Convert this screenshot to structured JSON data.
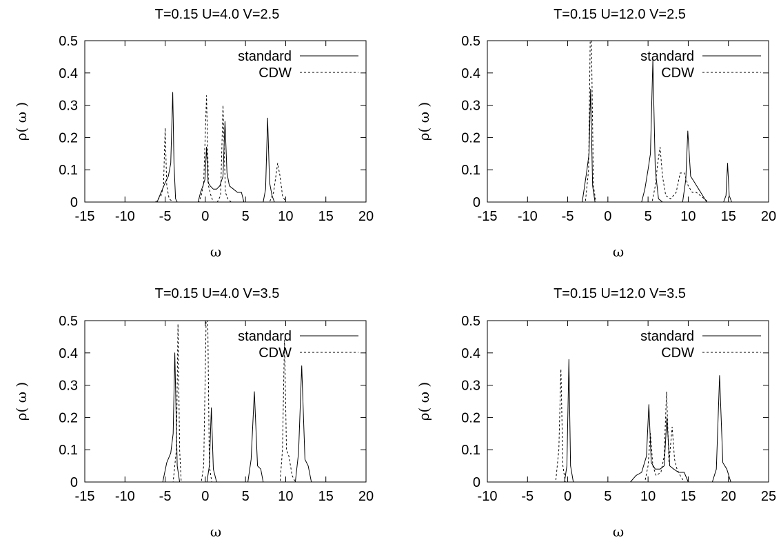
{
  "chart_data": [
    {
      "type": "line",
      "title": "T=0.15 U=4.0 V=2.5",
      "xlabel": "ω",
      "ylabel": "ρ( ω )",
      "xlim": [
        -15,
        20
      ],
      "ylim": [
        0,
        0.5
      ],
      "xticks": [
        "-15",
        "-10",
        "-5",
        "0",
        "5",
        "10",
        "15",
        "20"
      ],
      "yticks": [
        "0",
        "0.1",
        "0.2",
        "0.3",
        "0.4",
        "0.5"
      ],
      "grid": false,
      "legend_position": "top-right",
      "series": [
        {
          "name": "standard",
          "style": "solid",
          "x": [
            -15,
            -6.0,
            -5.5,
            -5.0,
            -4.6,
            -4.3,
            -4.05,
            -3.9,
            -3.7,
            -3.5,
            -0.9,
            -0.6,
            -0.3,
            -0.05,
            0.15,
            0.35,
            0.6,
            1.0,
            1.4,
            1.8,
            2.2,
            2.45,
            2.7,
            3.0,
            3.5,
            4.0,
            4.5,
            4.8,
            7.2,
            7.5,
            7.75,
            8.0,
            8.3,
            8.6,
            20
          ],
          "y": [
            0,
            0,
            0.03,
            0.06,
            0.08,
            0.12,
            0.34,
            0.12,
            0.01,
            0,
            0,
            0.03,
            0.05,
            0.07,
            0.17,
            0.06,
            0.05,
            0.04,
            0.04,
            0.05,
            0.08,
            0.25,
            0.09,
            0.05,
            0.04,
            0.03,
            0.03,
            0,
            0,
            0.04,
            0.26,
            0.06,
            0.02,
            0,
            0
          ]
        },
        {
          "name": "CDW",
          "style": "dashed",
          "x": [
            -15,
            -6.2,
            -5.5,
            -5.2,
            -5.0,
            -4.8,
            -4.5,
            -4.0,
            -0.8,
            -0.5,
            -0.2,
            0.15,
            0.4,
            0.7,
            1.0,
            1.5,
            1.9,
            2.2,
            2.5,
            2.8,
            3.2,
            8.0,
            8.5,
            9.0,
            9.3,
            9.6,
            10.0,
            20
          ],
          "y": [
            0,
            0,
            0.02,
            0.05,
            0.23,
            0.05,
            0.01,
            0,
            0,
            0.02,
            0.06,
            0.33,
            0.05,
            0.02,
            0,
            0,
            0.02,
            0.3,
            0.03,
            0.01,
            0,
            0,
            0.03,
            0.12,
            0.08,
            0.02,
            0,
            0
          ]
        }
      ]
    },
    {
      "type": "line",
      "title": "T=0.15 U=12.0 V=2.5",
      "xlabel": "ω",
      "ylabel": "ρ( ω )",
      "xlim": [
        -15,
        20
      ],
      "ylim": [
        0,
        0.5
      ],
      "xticks": [
        "-15",
        "-10",
        "-5",
        "0",
        "5",
        "10",
        "15",
        "20"
      ],
      "yticks": [
        "0",
        "0.1",
        "0.2",
        "0.3",
        "0.4",
        "0.5"
      ],
      "grid": false,
      "legend_position": "top-right",
      "series": [
        {
          "name": "standard",
          "style": "solid",
          "x": [
            -15,
            -3.2,
            -2.9,
            -2.6,
            -2.35,
            -2.15,
            -1.9,
            -1.6,
            4.2,
            4.6,
            5.0,
            5.3,
            5.6,
            5.9,
            6.3,
            6.8,
            9.3,
            9.7,
            9.95,
            10.3,
            10.8,
            11.3,
            11.8,
            12.3,
            14.4,
            14.7,
            14.9,
            15.1,
            15.4,
            20
          ],
          "y": [
            0,
            0,
            0.05,
            0.1,
            0.15,
            0.35,
            0.05,
            0,
            0,
            0.04,
            0.1,
            0.15,
            0.44,
            0.1,
            0.01,
            0,
            0,
            0.07,
            0.22,
            0.08,
            0.06,
            0.04,
            0.02,
            0,
            0,
            0.02,
            0.12,
            0.02,
            0,
            0
          ]
        },
        {
          "name": "CDW",
          "style": "dashed",
          "x": [
            -15,
            -2.8,
            -2.4,
            -2.2,
            -2.05,
            -1.8,
            -1.5,
            5.5,
            5.9,
            6.2,
            6.5,
            6.8,
            7.2,
            7.8,
            8.5,
            9.0,
            9.5,
            10.0,
            10.5,
            11.0,
            11.5,
            12.0,
            12.5,
            20
          ],
          "y": [
            0,
            0,
            0.1,
            0.5,
            0.5,
            0.05,
            0,
            0,
            0.05,
            0.12,
            0.17,
            0.08,
            0.02,
            0.01,
            0.03,
            0.09,
            0.09,
            0.05,
            0.03,
            0.03,
            0.02,
            0.01,
            0,
            0
          ]
        }
      ]
    },
    {
      "type": "line",
      "title": "T=0.15 U=4.0 V=3.5",
      "xlabel": "ω",
      "ylabel": "ρ( ω )",
      "xlim": [
        -15,
        20
      ],
      "ylim": [
        0,
        0.5
      ],
      "xticks": [
        "-15",
        "-10",
        "-5",
        "0",
        "5",
        "10",
        "15",
        "20"
      ],
      "yticks": [
        "0",
        "0.1",
        "0.2",
        "0.3",
        "0.4",
        "0.5"
      ],
      "grid": false,
      "legend_position": "top-right",
      "series": [
        {
          "name": "standard",
          "style": "solid",
          "x": [
            -15,
            -5.3,
            -4.8,
            -4.3,
            -4.0,
            -3.8,
            -3.5,
            -3.2,
            0.2,
            0.5,
            0.75,
            1.0,
            1.4,
            5.3,
            5.7,
            6.1,
            6.5,
            6.9,
            7.2,
            11.2,
            11.6,
            12.0,
            12.4,
            12.8,
            13.2,
            20
          ],
          "y": [
            0,
            0,
            0.06,
            0.09,
            0.15,
            0.4,
            0.05,
            0,
            0,
            0.05,
            0.23,
            0.04,
            0,
            0,
            0.07,
            0.28,
            0.05,
            0.04,
            0,
            0,
            0.09,
            0.36,
            0.07,
            0.05,
            0,
            0
          ]
        },
        {
          "name": "CDW",
          "style": "dashed",
          "x": [
            -15,
            -4.0,
            -3.6,
            -3.4,
            -3.2,
            -3.0,
            -0.5,
            -0.2,
            0.1,
            0.3,
            0.5,
            0.8,
            9.3,
            9.6,
            9.85,
            10.1,
            10.4,
            10.8,
            11.2,
            20
          ],
          "y": [
            0,
            0,
            0.1,
            0.49,
            0.1,
            0,
            0,
            0.05,
            0.5,
            0.5,
            0.05,
            0,
            0,
            0.1,
            0.44,
            0.1,
            0.08,
            0.02,
            0,
            0
          ]
        }
      ]
    },
    {
      "type": "line",
      "title": "T=0.15 U=12.0 V=3.5",
      "xlabel": "ω",
      "ylabel": "ρ( ω )",
      "xlim": [
        -10,
        25
      ],
      "ylim": [
        0,
        0.5
      ],
      "xticks": [
        "-10",
        "-5",
        "0",
        "5",
        "10",
        "15",
        "20",
        "25"
      ],
      "yticks": [
        "0",
        "0.1",
        "0.2",
        "0.3",
        "0.4",
        "0.5"
      ],
      "grid": false,
      "legend_position": "top-right",
      "series": [
        {
          "name": "standard",
          "style": "solid",
          "x": [
            -10,
            -0.4,
            -0.1,
            0.15,
            0.35,
            0.7,
            7.8,
            8.5,
            9.2,
            9.8,
            10.1,
            10.4,
            10.9,
            11.5,
            12.0,
            12.35,
            12.7,
            13.2,
            13.8,
            14.5,
            15.0,
            18.0,
            18.5,
            18.9,
            19.3,
            19.8,
            20.3,
            25
          ],
          "y": [
            0,
            0,
            0.05,
            0.38,
            0.05,
            0,
            0,
            0.02,
            0.03,
            0.08,
            0.24,
            0.06,
            0.04,
            0.04,
            0.05,
            0.2,
            0.05,
            0.04,
            0.03,
            0.03,
            0,
            0,
            0.04,
            0.33,
            0.06,
            0.04,
            0,
            0
          ]
        },
        {
          "name": "CDW",
          "style": "dashed",
          "x": [
            -10,
            -1.5,
            -1.1,
            -0.85,
            -0.6,
            -0.3,
            9.6,
            10.0,
            10.3,
            10.6,
            11.0,
            11.6,
            12.0,
            12.3,
            12.6,
            13.0,
            13.3,
            13.6,
            14.0,
            14.5,
            20.0,
            25
          ],
          "y": [
            0,
            0,
            0.1,
            0.35,
            0.05,
            0,
            0,
            0.05,
            0.15,
            0.05,
            0.02,
            0.03,
            0.08,
            0.28,
            0.06,
            0.17,
            0.07,
            0.04,
            0.02,
            0,
            0,
            0
          ]
        }
      ]
    }
  ]
}
